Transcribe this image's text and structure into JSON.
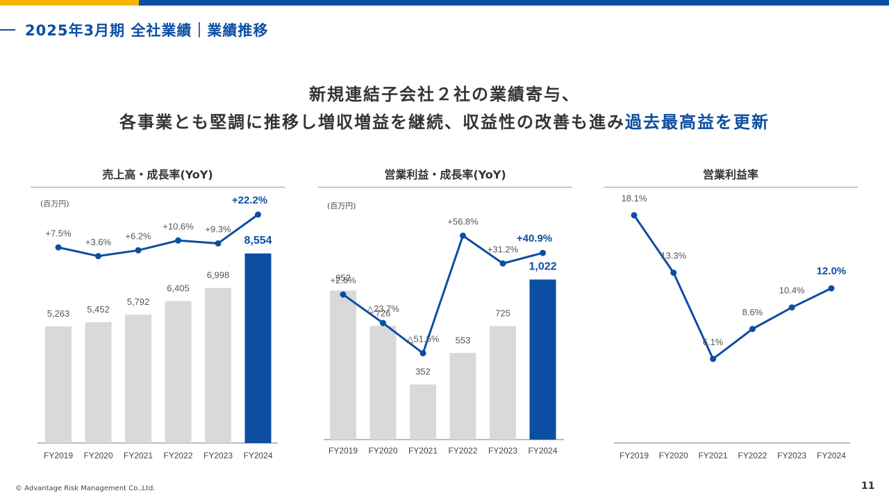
{
  "header": {
    "title": "2025年3月期 全社業績｜業績推移"
  },
  "headline": {
    "line1": "新規連結子会社２社の業績寄与、",
    "line2_prefix": "各事業とも堅調に推移し増収増益を継続、収益性の改善も進み",
    "line2_highlight": "過去最高益を更新"
  },
  "colors": {
    "accent": "#0c4ea2",
    "bar_gray": "#d9d9d9",
    "highlight_bar": "#0c4ea2",
    "yellow": "#f4b400"
  },
  "panels": [
    {
      "title": "売上高・成長率(YoY)",
      "unit": "(百万円)"
    },
    {
      "title": "営業利益・成長率(YoY)",
      "unit": "(百万円)"
    },
    {
      "title": "営業利益率",
      "unit": ""
    }
  ],
  "chart_data": [
    {
      "type": "bar",
      "title": "売上高・成長率(YoY)",
      "unit": "(百万円)",
      "categories": [
        "FY2019",
        "FY2020",
        "FY2021",
        "FY2022",
        "FY2023",
        "FY2024"
      ],
      "values": [
        5263,
        5452,
        5792,
        6405,
        6998,
        8554
      ],
      "value_labels": [
        "5,263",
        "5,452",
        "5,792",
        "6,405",
        "6,998",
        "8,554"
      ],
      "highlight_index": 5,
      "ylim": [
        0,
        9400
      ],
      "growth": {
        "type": "line",
        "values": [
          7.5,
          3.6,
          6.2,
          10.6,
          9.3,
          22.2
        ],
        "labels": [
          "+7.5%",
          "+3.6%",
          "+6.2%",
          "+10.6%",
          "+9.3%",
          "+22.2%"
        ],
        "ylim": [
          -45,
          25
        ]
      }
    },
    {
      "type": "bar",
      "title": "営業利益・成長率(YoY)",
      "unit": "(百万円)",
      "categories": [
        "FY2019",
        "FY2020",
        "FY2021",
        "FY2022",
        "FY2023",
        "FY2024"
      ],
      "values": [
        952,
        726,
        352,
        553,
        725,
        1022
      ],
      "value_labels": [
        "952",
        "726",
        "352",
        "553",
        "725",
        "1,022"
      ],
      "highlight_index": 5,
      "ylim": [
        0,
        1175
      ],
      "growth": {
        "type": "line",
        "values": [
          2.6,
          -23.7,
          -51.5,
          56.8,
          31.2,
          40.9
        ],
        "labels": [
          "+2.6%",
          "△23.7%",
          "△51.5%",
          "+56.8%",
          "+31.2%",
          "+40.9%"
        ],
        "ylim": [
          -62,
          82
        ]
      }
    },
    {
      "type": "line",
      "title": "営業利益率",
      "categories": [
        "FY2019",
        "FY2020",
        "FY2021",
        "FY2022",
        "FY2023",
        "FY2024"
      ],
      "values": [
        18.1,
        13.3,
        6.1,
        8.6,
        10.4,
        12.0
      ],
      "labels": [
        "18.1%",
        "13.3%",
        "6.1%",
        "8.6%",
        "10.4%",
        "12.0%"
      ],
      "highlight_index": 5,
      "ylim": [
        0,
        21
      ]
    }
  ],
  "footer": {
    "copyright": "© Advantage Risk Management Co.,Ltd.",
    "page_number": "11"
  }
}
